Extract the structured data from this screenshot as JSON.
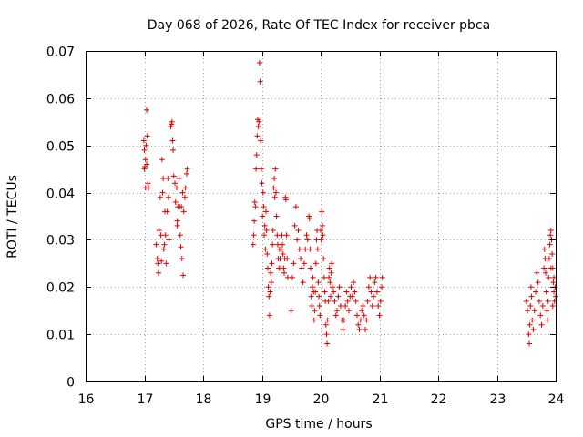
{
  "chart_data": {
    "type": "scatter",
    "title": "Day 068 of 2026, Rate Of TEC Index for receiver pbca",
    "xlabel": "GPS time / hours",
    "ylabel": "ROTI / TECUs",
    "xlim": [
      16,
      24
    ],
    "ylim": [
      0,
      0.07
    ],
    "xticks": [
      16,
      17,
      18,
      19,
      20,
      21,
      22,
      23,
      24
    ],
    "xtick_labels": [
      "16",
      "17",
      "18",
      "19",
      "20",
      "21",
      "22",
      "23",
      "24"
    ],
    "yticks": [
      0,
      0.01,
      0.02,
      0.03,
      0.04,
      0.05,
      0.06,
      0.07
    ],
    "ytick_labels": [
      "0",
      "0.01",
      "0.02",
      "0.03",
      "0.04",
      "0.05",
      "0.06",
      "0.07"
    ],
    "grid": true,
    "marker": "+",
    "color": "#e00000",
    "series": [
      {
        "name": "pbca",
        "points": [
          [
            17.0,
            0.049
          ],
          [
            17.01,
            0.0455
          ],
          [
            17.02,
            0.047
          ],
          [
            17.03,
            0.05
          ],
          [
            17.04,
            0.0575
          ],
          [
            17.05,
            0.052
          ],
          [
            17.06,
            0.042
          ],
          [
            17.02,
            0.041
          ],
          [
            17.07,
            0.041
          ],
          [
            16.99,
            0.051
          ],
          [
            17.0,
            0.045
          ],
          [
            17.04,
            0.046
          ],
          [
            17.2,
            0.029
          ],
          [
            17.22,
            0.026
          ],
          [
            17.24,
            0.023
          ],
          [
            17.25,
            0.032
          ],
          [
            17.27,
            0.039
          ],
          [
            17.28,
            0.031
          ],
          [
            17.3,
            0.047
          ],
          [
            17.31,
            0.04
          ],
          [
            17.32,
            0.043
          ],
          [
            17.33,
            0.028
          ],
          [
            17.35,
            0.036
          ],
          [
            17.36,
            0.031
          ],
          [
            17.37,
            0.025
          ],
          [
            17.39,
            0.036
          ],
          [
            17.4,
            0.043
          ],
          [
            17.41,
            0.039
          ],
          [
            17.42,
            0.03
          ],
          [
            17.23,
            0.025
          ],
          [
            17.29,
            0.0255
          ],
          [
            17.34,
            0.029
          ],
          [
            17.45,
            0.054
          ],
          [
            17.46,
            0.0545
          ],
          [
            17.47,
            0.055
          ],
          [
            17.48,
            0.051
          ],
          [
            17.49,
            0.049
          ],
          [
            17.5,
            0.0435
          ],
          [
            17.52,
            0.042
          ],
          [
            17.53,
            0.038
          ],
          [
            17.55,
            0.041
          ],
          [
            17.56,
            0.033
          ],
          [
            17.57,
            0.037
          ],
          [
            17.59,
            0.043
          ],
          [
            17.6,
            0.037
          ],
          [
            17.61,
            0.031
          ],
          [
            17.62,
            0.0285
          ],
          [
            17.63,
            0.037
          ],
          [
            17.65,
            0.04
          ],
          [
            17.66,
            0.0225
          ],
          [
            17.67,
            0.036
          ],
          [
            17.69,
            0.039
          ],
          [
            17.7,
            0.041
          ],
          [
            17.72,
            0.044
          ],
          [
            17.73,
            0.045
          ],
          [
            17.56,
            0.034
          ],
          [
            17.64,
            0.026
          ],
          [
            18.85,
            0.029
          ],
          [
            18.86,
            0.031
          ],
          [
            18.87,
            0.034
          ],
          [
            18.88,
            0.038
          ],
          [
            18.89,
            0.037
          ],
          [
            18.9,
            0.045
          ],
          [
            18.91,
            0.048
          ],
          [
            18.92,
            0.052
          ],
          [
            18.93,
            0.0555
          ],
          [
            18.94,
            0.054
          ],
          [
            18.95,
            0.055
          ],
          [
            18.96,
            0.0675
          ],
          [
            18.97,
            0.0635
          ],
          [
            18.98,
            0.051
          ],
          [
            18.99,
            0.045
          ],
          [
            19.0,
            0.042
          ],
          [
            19.01,
            0.035
          ],
          [
            19.02,
            0.04
          ],
          [
            19.03,
            0.037
          ],
          [
            19.04,
            0.031
          ],
          [
            19.05,
            0.033
          ],
          [
            19.06,
            0.028
          ],
          [
            19.07,
            0.036
          ],
          [
            19.08,
            0.032
          ],
          [
            19.09,
            0.027
          ],
          [
            19.1,
            0.024
          ],
          [
            19.11,
            0.02
          ],
          [
            19.12,
            0.018
          ],
          [
            19.13,
            0.014
          ],
          [
            19.14,
            0.019
          ],
          [
            19.15,
            0.023
          ],
          [
            19.16,
            0.021
          ],
          [
            19.17,
            0.025
          ],
          [
            19.18,
            0.029
          ],
          [
            19.19,
            0.032
          ],
          [
            19.2,
            0.041
          ],
          [
            19.21,
            0.043
          ],
          [
            19.22,
            0.039
          ],
          [
            19.23,
            0.045
          ],
          [
            19.24,
            0.04
          ],
          [
            19.25,
            0.035
          ],
          [
            19.26,
            0.031
          ],
          [
            19.27,
            0.029
          ],
          [
            19.28,
            0.026
          ],
          [
            19.29,
            0.024
          ],
          [
            19.3,
            0.028
          ],
          [
            19.31,
            0.026
          ],
          [
            19.32,
            0.024
          ],
          [
            19.33,
            0.028
          ],
          [
            19.34,
            0.031
          ],
          [
            19.35,
            0.029
          ],
          [
            19.36,
            0.027
          ],
          [
            19.37,
            0.024
          ],
          [
            19.38,
            0.023
          ],
          [
            19.39,
            0.026
          ],
          [
            19.4,
            0.039
          ],
          [
            19.41,
            0.0385
          ],
          [
            19.42,
            0.031
          ],
          [
            19.43,
            0.026
          ],
          [
            19.44,
            0.022
          ],
          [
            19.5,
            0.015
          ],
          [
            19.52,
            0.022
          ],
          [
            19.54,
            0.025
          ],
          [
            19.56,
            0.033
          ],
          [
            19.58,
            0.037
          ],
          [
            19.6,
            0.03
          ],
          [
            19.62,
            0.032
          ],
          [
            19.64,
            0.028
          ],
          [
            19.66,
            0.026
          ],
          [
            19.68,
            0.024
          ],
          [
            19.7,
            0.021
          ],
          [
            19.72,
            0.025
          ],
          [
            19.74,
            0.028
          ],
          [
            19.76,
            0.031
          ],
          [
            19.78,
            0.03
          ],
          [
            19.8,
            0.035
          ],
          [
            19.81,
            0.0345
          ],
          [
            19.82,
            0.028
          ],
          [
            19.83,
            0.024
          ],
          [
            19.84,
            0.018
          ],
          [
            19.85,
            0.016
          ],
          [
            19.86,
            0.02
          ],
          [
            19.87,
            0.022
          ],
          [
            19.88,
            0.019
          ],
          [
            19.89,
            0.013
          ],
          [
            19.9,
            0.015
          ],
          [
            19.91,
            0.019
          ],
          [
            19.92,
            0.025
          ],
          [
            19.93,
            0.03
          ],
          [
            19.94,
            0.032
          ],
          [
            19.95,
            0.028
          ],
          [
            19.96,
            0.021
          ],
          [
            19.97,
            0.018
          ],
          [
            19.98,
            0.016
          ],
          [
            19.99,
            0.014
          ],
          [
            20.0,
            0.032
          ],
          [
            20.01,
            0.03
          ],
          [
            20.02,
            0.036
          ],
          [
            20.03,
            0.033
          ],
          [
            20.04,
            0.031
          ],
          [
            20.05,
            0.026
          ],
          [
            20.06,
            0.022
          ],
          [
            20.07,
            0.019
          ],
          [
            20.08,
            0.017
          ],
          [
            20.09,
            0.012
          ],
          [
            20.1,
            0.01
          ],
          [
            20.11,
            0.008
          ],
          [
            20.12,
            0.013
          ],
          [
            20.13,
            0.017
          ],
          [
            20.14,
            0.022
          ],
          [
            20.15,
            0.024
          ],
          [
            20.16,
            0.021
          ],
          [
            20.17,
            0.018
          ],
          [
            20.18,
            0.023
          ],
          [
            20.19,
            0.025
          ],
          [
            20.2,
            0.02
          ],
          [
            20.22,
            0.019
          ],
          [
            20.24,
            0.017
          ],
          [
            20.26,
            0.014
          ],
          [
            20.28,
            0.015
          ],
          [
            20.3,
            0.018
          ],
          [
            20.32,
            0.02
          ],
          [
            20.34,
            0.016
          ],
          [
            20.36,
            0.013
          ],
          [
            20.38,
            0.011
          ],
          [
            20.4,
            0.013
          ],
          [
            20.42,
            0.016
          ],
          [
            20.44,
            0.019
          ],
          [
            20.46,
            0.017
          ],
          [
            20.48,
            0.015
          ],
          [
            20.5,
            0.018
          ],
          [
            20.52,
            0.02
          ],
          [
            20.54,
            0.018
          ],
          [
            20.56,
            0.021
          ],
          [
            20.58,
            0.019
          ],
          [
            20.6,
            0.017
          ],
          [
            20.62,
            0.014
          ],
          [
            20.64,
            0.012
          ],
          [
            20.66,
            0.011
          ],
          [
            20.68,
            0.013
          ],
          [
            20.7,
            0.015
          ],
          [
            20.72,
            0.016
          ],
          [
            20.74,
            0.014
          ],
          [
            20.76,
            0.011
          ],
          [
            20.78,
            0.013
          ],
          [
            20.8,
            0.017
          ],
          [
            20.82,
            0.02
          ],
          [
            20.84,
            0.022
          ],
          [
            20.86,
            0.019
          ],
          [
            20.88,
            0.016
          ],
          [
            20.9,
            0.018
          ],
          [
            20.92,
            0.021
          ],
          [
            20.94,
            0.022
          ],
          [
            20.96,
            0.019
          ],
          [
            20.98,
            0.016
          ],
          [
            21.0,
            0.014
          ],
          [
            21.02,
            0.017
          ],
          [
            21.04,
            0.02
          ],
          [
            21.05,
            0.022
          ],
          [
            23.5,
            0.017
          ],
          [
            23.52,
            0.015
          ],
          [
            23.54,
            0.01
          ],
          [
            23.55,
            0.008
          ],
          [
            23.56,
            0.012
          ],
          [
            23.57,
            0.016
          ],
          [
            23.58,
            0.02
          ],
          [
            23.59,
            0.018
          ],
          [
            23.6,
            0.013
          ],
          [
            23.62,
            0.011
          ],
          [
            23.64,
            0.015
          ],
          [
            23.66,
            0.019
          ],
          [
            23.68,
            0.023
          ],
          [
            23.7,
            0.021
          ],
          [
            23.72,
            0.017
          ],
          [
            23.74,
            0.014
          ],
          [
            23.76,
            0.012
          ],
          [
            23.78,
            0.016
          ],
          [
            23.8,
            0.024
          ],
          [
            23.81,
            0.028
          ],
          [
            23.82,
            0.026
          ],
          [
            23.83,
            0.023
          ],
          [
            23.84,
            0.019
          ],
          [
            23.85,
            0.015
          ],
          [
            23.86,
            0.013
          ],
          [
            23.87,
            0.017
          ],
          [
            23.88,
            0.022
          ],
          [
            23.89,
            0.026
          ],
          [
            23.9,
            0.029
          ],
          [
            23.91,
            0.031
          ],
          [
            23.92,
            0.032
          ],
          [
            23.93,
            0.03
          ],
          [
            23.94,
            0.027
          ],
          [
            23.95,
            0.024
          ],
          [
            23.96,
            0.021
          ],
          [
            23.97,
            0.019
          ],
          [
            23.98,
            0.017
          ],
          [
            23.99,
            0.02
          ],
          [
            24.0,
            0.018
          ],
          [
            23.95,
            0.016
          ],
          [
            23.97,
            0.022
          ],
          [
            23.92,
            0.024
          ]
        ]
      }
    ]
  }
}
